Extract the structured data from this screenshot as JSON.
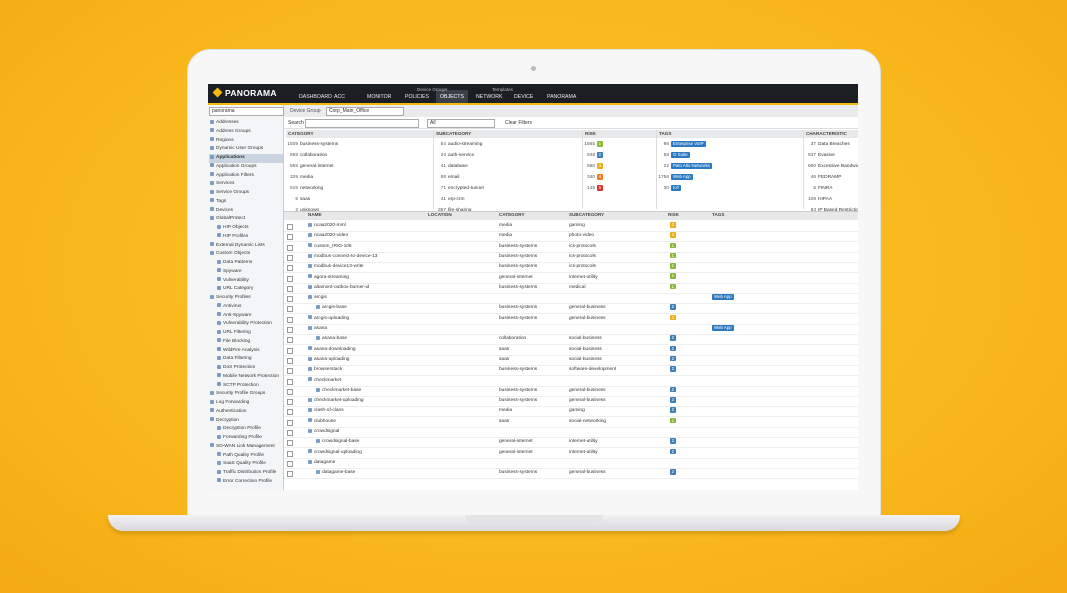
{
  "nav": {
    "logo": "PANORAMA",
    "tabs": [
      "DASHBOARD",
      "ACC",
      "MONITOR",
      "POLICIES",
      "OBJECTS",
      "NETWORK",
      "DEVICE",
      "PANORAMA"
    ],
    "group_labels": [
      "Device Groups",
      "Templates"
    ]
  },
  "sidebar": {
    "context": "panorama",
    "items": [
      {
        "label": "Addresses"
      },
      {
        "label": "Address Groups"
      },
      {
        "label": "Regions"
      },
      {
        "label": "Dynamic User Groups"
      },
      {
        "label": "Applications"
      },
      {
        "label": "Application Groups"
      },
      {
        "label": "Application Filters"
      },
      {
        "label": "Services"
      },
      {
        "label": "Service Groups"
      },
      {
        "label": "Tags"
      },
      {
        "label": "Devices"
      },
      {
        "label": "GlobalProtect",
        "children": [
          "HIP Objects",
          "HIP Profiles"
        ]
      },
      {
        "label": "External Dynamic Lists"
      },
      {
        "label": "Custom Objects",
        "children": [
          "Data Patterns",
          "Spyware",
          "Vulnerability",
          "URL Category"
        ]
      },
      {
        "label": "Security Profiles",
        "children": [
          "Antivirus",
          "Anti-Spyware",
          "Vulnerability Protection",
          "URL Filtering",
          "File Blocking",
          "WildFire Analysis",
          "Data Filtering",
          "DoS Protection",
          "Mobile Network Protection",
          "SCTP Protection"
        ]
      },
      {
        "label": "Security Profile Groups"
      },
      {
        "label": "Log Forwarding"
      },
      {
        "label": "Authentication"
      },
      {
        "label": "Decryption",
        "children": [
          "Decryption Profile",
          "Forwarding Profile"
        ]
      },
      {
        "label": "SD-WAN Link Management",
        "children": [
          "Path Quality Profile",
          "SaaS Quality Profile",
          "Traffic Distribution Profile",
          "Error Correction Profile"
        ]
      }
    ]
  },
  "device_group": {
    "label": "Device Group",
    "value": "Corp_Main_Office"
  },
  "search": {
    "label": "Search",
    "filter": "All",
    "clear": "Clear Filters"
  },
  "filter_columns": [
    {
      "title": "CATEGORY",
      "display": "text",
      "entries": [
        {
          "count": 1509,
          "label": "business-systems"
        },
        {
          "count": 659,
          "label": "collaboration"
        },
        {
          "count": 555,
          "label": "general-internet"
        },
        {
          "count": 329,
          "label": "media"
        },
        {
          "count": 515,
          "label": "networking"
        },
        {
          "count": 5,
          "label": "saas"
        },
        {
          "count": 2,
          "label": "unknown"
        }
      ]
    },
    {
      "title": "SUBCATEGORY",
      "display": "text",
      "entries": [
        {
          "count": 54,
          "label": "audio-streaming"
        },
        {
          "count": 24,
          "label": "auth-service"
        },
        {
          "count": 41,
          "label": "database"
        },
        {
          "count": 88,
          "label": "email"
        },
        {
          "count": 71,
          "label": "encrypted-tunnel"
        },
        {
          "count": 41,
          "label": "erp-crm"
        },
        {
          "count": 357,
          "label": "file-sharing"
        }
      ]
    },
    {
      "title": "RISK",
      "display": "risk",
      "entries": [
        {
          "count": 1565,
          "label": 1
        },
        {
          "count": 948,
          "label": 2
        },
        {
          "count": 560,
          "label": 3
        },
        {
          "count": 340,
          "label": 4
        },
        {
          "count": 145,
          "label": 5
        }
      ]
    },
    {
      "title": "TAGS",
      "display": "tag",
      "entries": [
        {
          "count": 86,
          "label": "Enterprise VoIP"
        },
        {
          "count": 58,
          "label": "G Suite"
        },
        {
          "count": 22,
          "label": "Palo Alto Networks"
        },
        {
          "count": 1756,
          "label": "Web App"
        },
        {
          "count": 30,
          "label": "IoT"
        }
      ]
    },
    {
      "title": "CHARACTERISTIC",
      "display": "text",
      "entries": [
        {
          "count": 37,
          "label": "Data Breaches"
        },
        {
          "count": 637,
          "label": "Evasive"
        },
        {
          "count": 660,
          "label": "Excessive Bandwidth"
        },
        {
          "count": 46,
          "label": "FEDRAMP"
        },
        {
          "count": 5,
          "label": "FINRA"
        },
        {
          "count": 108,
          "label": "HIPAA"
        },
        {
          "count": 83,
          "label": "IP Based Restrictions"
        }
      ]
    }
  ],
  "table": {
    "columns": [
      "NAME",
      "LOCATION",
      "CATEGORY",
      "SUBCATEGORY",
      "RISK",
      "TAGS"
    ],
    "rows": [
      {
        "name": "ncaa2020-mml",
        "category": "media",
        "subcategory": "gaming",
        "risk": 3
      },
      {
        "name": "ncaa2020-video",
        "category": "media",
        "subcategory": "photo-video",
        "risk": 3
      },
      {
        "name": "custom_IRIG-106",
        "category": "business-systems",
        "subcategory": "ics-protocols",
        "risk": 1
      },
      {
        "name": "modbus-connect-to-device-13",
        "category": "business-systems",
        "subcategory": "ics-protocols",
        "risk": 1
      },
      {
        "name": "modbus-device13-write",
        "category": "business-systems",
        "subcategory": "ics-protocols",
        "risk": 1
      },
      {
        "name": "agora-streaming",
        "category": "general-internet",
        "subcategory": "internet-utility",
        "risk": 1
      },
      {
        "name": "altamont-outbox-burner-id",
        "category": "business-systems",
        "subcategory": "medical",
        "risk": 1
      },
      {
        "name": "arcgis",
        "tags": [
          "Web App"
        ],
        "children": [
          {
            "name": "arcgis-base",
            "category": "business-systems",
            "subcategory": "general-business",
            "risk": 2
          }
        ]
      },
      {
        "name": "arcgis-uploading",
        "category": "business-systems",
        "subcategory": "general-business",
        "risk": 3
      },
      {
        "name": "asana",
        "tags": [
          "Web App"
        ],
        "children": [
          {
            "name": "asana-base",
            "category": "collaboration",
            "subcategory": "social-business",
            "risk": 2
          }
        ]
      },
      {
        "name": "asana-downloading",
        "category": "saas",
        "subcategory": "social-business",
        "risk": 2
      },
      {
        "name": "asana-uploading",
        "category": "saas",
        "subcategory": "social-business",
        "risk": 2
      },
      {
        "name": "browserstack",
        "category": "business-systems",
        "subcategory": "software-development",
        "risk": 2
      },
      {
        "name": "checkmarket",
        "children": [
          {
            "name": "checkmarket-base",
            "category": "business-systems",
            "subcategory": "general-business",
            "risk": 2
          }
        ]
      },
      {
        "name": "checkmarket-uploading",
        "category": "business-systems",
        "subcategory": "general-business",
        "risk": 2
      },
      {
        "name": "clash-of-clans",
        "category": "media",
        "subcategory": "gaming",
        "risk": 2
      },
      {
        "name": "clubhouse",
        "category": "saas",
        "subcategory": "social-networking",
        "risk": 1
      },
      {
        "name": "crowdsignal",
        "children": [
          {
            "name": "crowdsignal-base",
            "category": "general-internet",
            "subcategory": "internet-utility",
            "risk": 2
          }
        ]
      },
      {
        "name": "crowdsignal-uploading",
        "category": "general-internet",
        "subcategory": "internet-utility",
        "risk": 2
      },
      {
        "name": "datagame",
        "children": [
          {
            "name": "datagame-base",
            "category": "business-systems",
            "subcategory": "general-business",
            "risk": 2
          }
        ]
      }
    ]
  }
}
